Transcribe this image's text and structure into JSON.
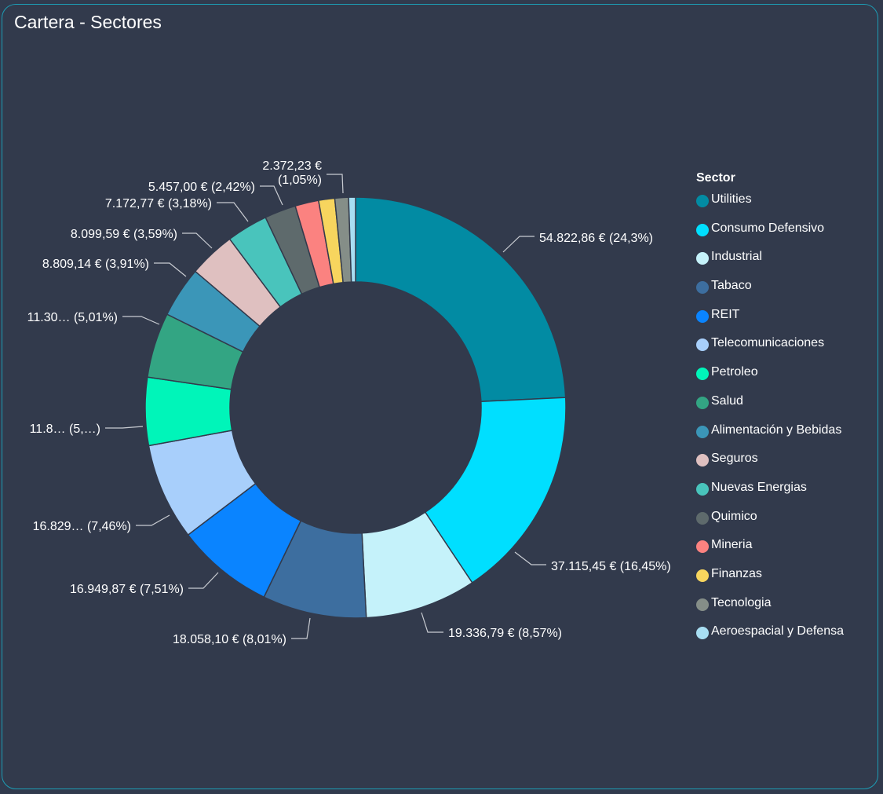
{
  "header": {
    "title": "Cartera - Sectores"
  },
  "legend": {
    "title": "Sector"
  },
  "chart_data": {
    "type": "pie",
    "donut": true,
    "legend_position": "right",
    "slices": [
      {
        "name": "Utilities",
        "value": 54822.86,
        "percent": 24.3,
        "color": "#028ba3",
        "labels": [
          "54.822,86 € (24,3%)"
        ]
      },
      {
        "name": "Consumo Defensivo",
        "value": 37115.45,
        "percent": 16.45,
        "color": "#00dfff",
        "labels": [
          "37.115,45 € (16,45%)"
        ]
      },
      {
        "name": "Industrial",
        "value": 19336.79,
        "percent": 8.57,
        "color": "#c5f2fa",
        "labels": [
          "19.336,79 € (8,57%)"
        ]
      },
      {
        "name": "Tabaco",
        "value": 18058.1,
        "percent": 8.01,
        "color": "#3d6e9f",
        "labels": [
          "18.058,10 € (8,01%)"
        ]
      },
      {
        "name": "REIT",
        "value": 16949.87,
        "percent": 7.51,
        "color": "#0a84ff",
        "labels": [
          "16.949,87 € (7,51%)"
        ]
      },
      {
        "name": "Telecomunicaciones",
        "value": 16829,
        "percent": 7.46,
        "color": "#a8cffb",
        "labels": [
          "16.829… (7,46%)"
        ]
      },
      {
        "name": "Petroleo",
        "value": 11800,
        "percent": 5.2,
        "color": "#00f5b9",
        "labels": [
          "11.8… (5,…)"
        ]
      },
      {
        "name": "Salud",
        "value": 11300,
        "percent": 5.01,
        "color": "#33a583",
        "labels": [
          "11.30… (5,01%)"
        ]
      },
      {
        "name": "Alimentación y Bebidas",
        "value": 8809.14,
        "percent": 3.91,
        "color": "#3b96b8",
        "labels": [
          "8.809,14 € (3,91%)"
        ]
      },
      {
        "name": "Seguros",
        "value": 8099.59,
        "percent": 3.59,
        "color": "#dfc0c0",
        "labels": [
          "8.099,59 € (3,59%)"
        ]
      },
      {
        "name": "Nuevas Energias",
        "value": 7172.77,
        "percent": 3.18,
        "color": "#49c4bc",
        "labels": [
          "7.172,77 € (3,18%)"
        ]
      },
      {
        "name": "Quimico",
        "value": 5457.0,
        "percent": 2.42,
        "color": "#5e6a6c",
        "labels": [
          "5.457,00 € (2,42%)"
        ]
      },
      {
        "name": "Mineria",
        "value": 4100,
        "percent": 1.82,
        "color": "#fb8280",
        "labels": []
      },
      {
        "name": "Finanzas",
        "value": 2800,
        "percent": 1.24,
        "color": "#f7d55e",
        "labels": []
      },
      {
        "name": "Tecnologia",
        "value": 2372.23,
        "percent": 1.05,
        "color": "#858e88",
        "labels": [
          "2.372,23 €",
          "(1,05%)"
        ]
      },
      {
        "name": "Aeroespacial y Defensa",
        "value": 1200,
        "percent": 0.53,
        "color": "#a8def2",
        "labels": []
      }
    ]
  }
}
